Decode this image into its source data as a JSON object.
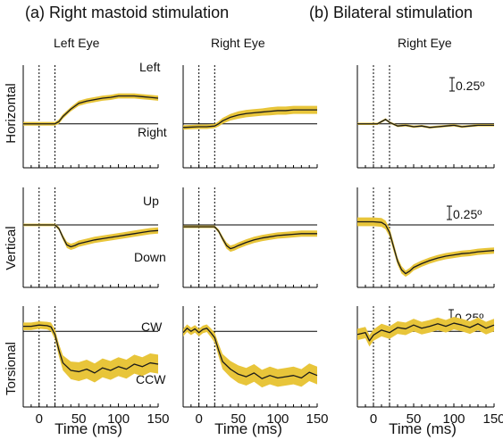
{
  "headers": {
    "a": "(a) Right mastoid stimulation",
    "b": "(b) Bilateral stimulation",
    "col_left_eye": "Left Eye",
    "col_right_eye_a": "Right Eye",
    "col_right_eye_b": "Right Eye"
  },
  "row_labels": {
    "horizontal": "Horizontal",
    "vertical": "Vertical",
    "torsional": "Torsional"
  },
  "direction_labels": {
    "left": "Left",
    "right": "Right",
    "up": "Up",
    "down": "Down",
    "cw": "CW",
    "ccw": "CCW"
  },
  "scale_bar": {
    "label": "0.25º",
    "value_deg": 0.25
  },
  "x_axis": {
    "label": "Time (ms)",
    "ticks": [
      "0",
      "50",
      "100",
      "150"
    ],
    "tick_values": [
      0,
      50,
      100,
      150
    ],
    "xlim": [
      -20,
      150
    ],
    "minor_tick_step_ms": 10,
    "stim_markers_ms": [
      0,
      20
    ]
  },
  "colors": {
    "band": "#e8c53a",
    "trace": "#1a1a1a",
    "axis": "#000000"
  },
  "chart_data": [
    {
      "type": "line",
      "panel": "a-left-eye-horizontal",
      "ylim": [
        -0.6,
        0.8
      ],
      "series": [
        {
          "x": [
            -20,
            0,
            10,
            20,
            25,
            30,
            40,
            50,
            60,
            70,
            80,
            90,
            100,
            110,
            120,
            130,
            140,
            150
          ],
          "y": [
            0,
            0,
            0,
            0,
            0.03,
            0.1,
            0.2,
            0.28,
            0.31,
            0.33,
            0.35,
            0.36,
            0.38,
            0.38,
            0.38,
            0.37,
            0.36,
            0.35
          ],
          "band": [
            0.025,
            0.025,
            0.025,
            0.025,
            0.03,
            0.03,
            0.03,
            0.035,
            0.035,
            0.035,
            0.035,
            0.035,
            0.035,
            0.035,
            0.035,
            0.035,
            0.035,
            0.035
          ]
        }
      ]
    },
    {
      "type": "line",
      "panel": "a-right-eye-horizontal",
      "ylim": [
        -0.6,
        0.8
      ],
      "series": [
        {
          "x": [
            -20,
            0,
            10,
            20,
            25,
            30,
            40,
            50,
            60,
            70,
            80,
            90,
            100,
            110,
            120,
            130,
            140,
            150
          ],
          "y": [
            -0.05,
            -0.04,
            -0.04,
            -0.03,
            0,
            0.04,
            0.09,
            0.12,
            0.14,
            0.15,
            0.16,
            0.17,
            0.18,
            0.18,
            0.19,
            0.19,
            0.19,
            0.19
          ],
          "band": [
            0.03,
            0.03,
            0.03,
            0.03,
            0.035,
            0.04,
            0.045,
            0.05,
            0.05,
            0.05,
            0.05,
            0.055,
            0.055,
            0.055,
            0.055,
            0.055,
            0.055,
            0.055
          ]
        }
      ]
    },
    {
      "type": "line",
      "panel": "b-right-eye-horizontal",
      "ylim": [
        -0.6,
        0.8
      ],
      "series": [
        {
          "x": [
            -20,
            0,
            5,
            10,
            15,
            20,
            30,
            40,
            50,
            60,
            70,
            80,
            90,
            100,
            110,
            120,
            130,
            140,
            150
          ],
          "y": [
            0,
            0,
            0,
            0.03,
            0.06,
            0.02,
            -0.03,
            -0.02,
            -0.04,
            -0.03,
            -0.05,
            -0.04,
            -0.03,
            -0.02,
            -0.04,
            -0.03,
            -0.02,
            -0.02,
            -0.02
          ],
          "band": [
            0.015,
            0.015,
            0.015,
            0.015,
            0.015,
            0.015,
            0.015,
            0.015,
            0.015,
            0.015,
            0.015,
            0.015,
            0.015,
            0.015,
            0.015,
            0.015,
            0.015,
            0.015,
            0.015
          ]
        }
      ]
    },
    {
      "type": "line",
      "panel": "a-left-eye-vertical",
      "ylim": [
        -1.0,
        0.6
      ],
      "series": [
        {
          "x": [
            -20,
            0,
            10,
            20,
            25,
            30,
            35,
            40,
            45,
            50,
            60,
            70,
            80,
            90,
            100,
            110,
            120,
            130,
            140,
            150
          ],
          "y": [
            0,
            0,
            0,
            0,
            -0.06,
            -0.2,
            -0.32,
            -0.35,
            -0.33,
            -0.3,
            -0.27,
            -0.24,
            -0.22,
            -0.2,
            -0.18,
            -0.16,
            -0.14,
            -0.12,
            -0.1,
            -0.09
          ],
          "band": [
            0.02,
            0.02,
            0.02,
            0.02,
            0.03,
            0.04,
            0.05,
            0.05,
            0.05,
            0.05,
            0.05,
            0.05,
            0.05,
            0.05,
            0.05,
            0.05,
            0.05,
            0.05,
            0.05,
            0.05
          ]
        }
      ]
    },
    {
      "type": "line",
      "panel": "a-right-eye-vertical",
      "ylim": [
        -1.0,
        0.6
      ],
      "series": [
        {
          "x": [
            -20,
            0,
            10,
            20,
            25,
            30,
            35,
            40,
            45,
            50,
            60,
            70,
            80,
            90,
            100,
            110,
            120,
            130,
            140,
            150
          ],
          "y": [
            -0.03,
            -0.03,
            -0.03,
            -0.03,
            -0.1,
            -0.22,
            -0.33,
            -0.38,
            -0.36,
            -0.33,
            -0.28,
            -0.24,
            -0.21,
            -0.19,
            -0.17,
            -0.16,
            -0.15,
            -0.14,
            -0.14,
            -0.14
          ],
          "band": [
            0.02,
            0.02,
            0.02,
            0.02,
            0.03,
            0.04,
            0.05,
            0.05,
            0.05,
            0.05,
            0.05,
            0.05,
            0.05,
            0.05,
            0.05,
            0.05,
            0.05,
            0.05,
            0.05,
            0.05
          ]
        }
      ]
    },
    {
      "type": "line",
      "panel": "b-right-eye-vertical",
      "ylim": [
        -1.0,
        0.6
      ],
      "series": [
        {
          "x": [
            -20,
            0,
            10,
            15,
            20,
            25,
            30,
            35,
            40,
            45,
            50,
            60,
            70,
            80,
            90,
            100,
            110,
            120,
            130,
            140,
            150
          ],
          "y": [
            0.05,
            0.05,
            0.04,
            0,
            -0.12,
            -0.35,
            -0.58,
            -0.72,
            -0.78,
            -0.74,
            -0.68,
            -0.62,
            -0.57,
            -0.53,
            -0.5,
            -0.48,
            -0.46,
            -0.45,
            -0.43,
            -0.42,
            -0.41
          ],
          "band": [
            0.07,
            0.07,
            0.07,
            0.07,
            0.07,
            0.07,
            0.06,
            0.06,
            0.05,
            0.05,
            0.05,
            0.05,
            0.05,
            0.05,
            0.05,
            0.05,
            0.05,
            0.05,
            0.05,
            0.05,
            0.05
          ]
        }
      ]
    },
    {
      "type": "line",
      "panel": "a-left-eye-torsional",
      "ylim": [
        -1.2,
        0.4
      ],
      "series": [
        {
          "x": [
            -20,
            -10,
            0,
            10,
            15,
            20,
            25,
            30,
            40,
            50,
            60,
            70,
            80,
            90,
            100,
            110,
            120,
            130,
            140,
            150
          ],
          "y": [
            0.08,
            0.08,
            0.1,
            0.09,
            0.07,
            -0.05,
            -0.3,
            -0.5,
            -0.62,
            -0.64,
            -0.6,
            -0.66,
            -0.58,
            -0.62,
            -0.56,
            -0.6,
            -0.52,
            -0.56,
            -0.5,
            -0.52
          ],
          "band": [
            0.06,
            0.06,
            0.06,
            0.06,
            0.07,
            0.08,
            0.1,
            0.12,
            0.14,
            0.15,
            0.15,
            0.15,
            0.15,
            0.15,
            0.15,
            0.15,
            0.15,
            0.15,
            0.15,
            0.15
          ]
        }
      ]
    },
    {
      "type": "line",
      "panel": "a-right-eye-torsional",
      "ylim": [
        -1.2,
        0.4
      ],
      "series": [
        {
          "x": [
            -20,
            -15,
            -10,
            -5,
            0,
            5,
            10,
            15,
            20,
            25,
            30,
            40,
            50,
            60,
            70,
            80,
            90,
            100,
            110,
            120,
            130,
            140,
            150
          ],
          "y": [
            -0.02,
            0.05,
            0,
            0.04,
            -0.02,
            0.03,
            0.05,
            -0.02,
            -0.1,
            -0.3,
            -0.48,
            -0.6,
            -0.68,
            -0.72,
            -0.66,
            -0.75,
            -0.7,
            -0.74,
            -0.72,
            -0.7,
            -0.74,
            -0.65,
            -0.7
          ],
          "band": [
            0.06,
            0.06,
            0.06,
            0.06,
            0.06,
            0.06,
            0.06,
            0.07,
            0.08,
            0.1,
            0.12,
            0.13,
            0.14,
            0.14,
            0.14,
            0.14,
            0.14,
            0.14,
            0.14,
            0.14,
            0.14,
            0.14,
            0.14
          ]
        }
      ]
    },
    {
      "type": "line",
      "panel": "b-right-eye-torsional",
      "ylim": [
        -1.2,
        0.4
      ],
      "series": [
        {
          "x": [
            -20,
            -10,
            -5,
            0,
            10,
            20,
            30,
            40,
            50,
            60,
            70,
            80,
            90,
            100,
            110,
            120,
            130,
            140,
            150
          ],
          "y": [
            -0.05,
            -0.02,
            -0.15,
            -0.06,
            0.02,
            -0.02,
            0.06,
            0.04,
            0.1,
            0.05,
            0.08,
            0.12,
            0.08,
            0.13,
            0.1,
            0.06,
            0.12,
            0.05,
            0.1
          ],
          "band": [
            0.09,
            0.09,
            0.09,
            0.09,
            0.1,
            0.1,
            0.1,
            0.1,
            0.1,
            0.1,
            0.1,
            0.1,
            0.1,
            0.1,
            0.1,
            0.1,
            0.1,
            0.1,
            0.1
          ]
        }
      ]
    }
  ]
}
